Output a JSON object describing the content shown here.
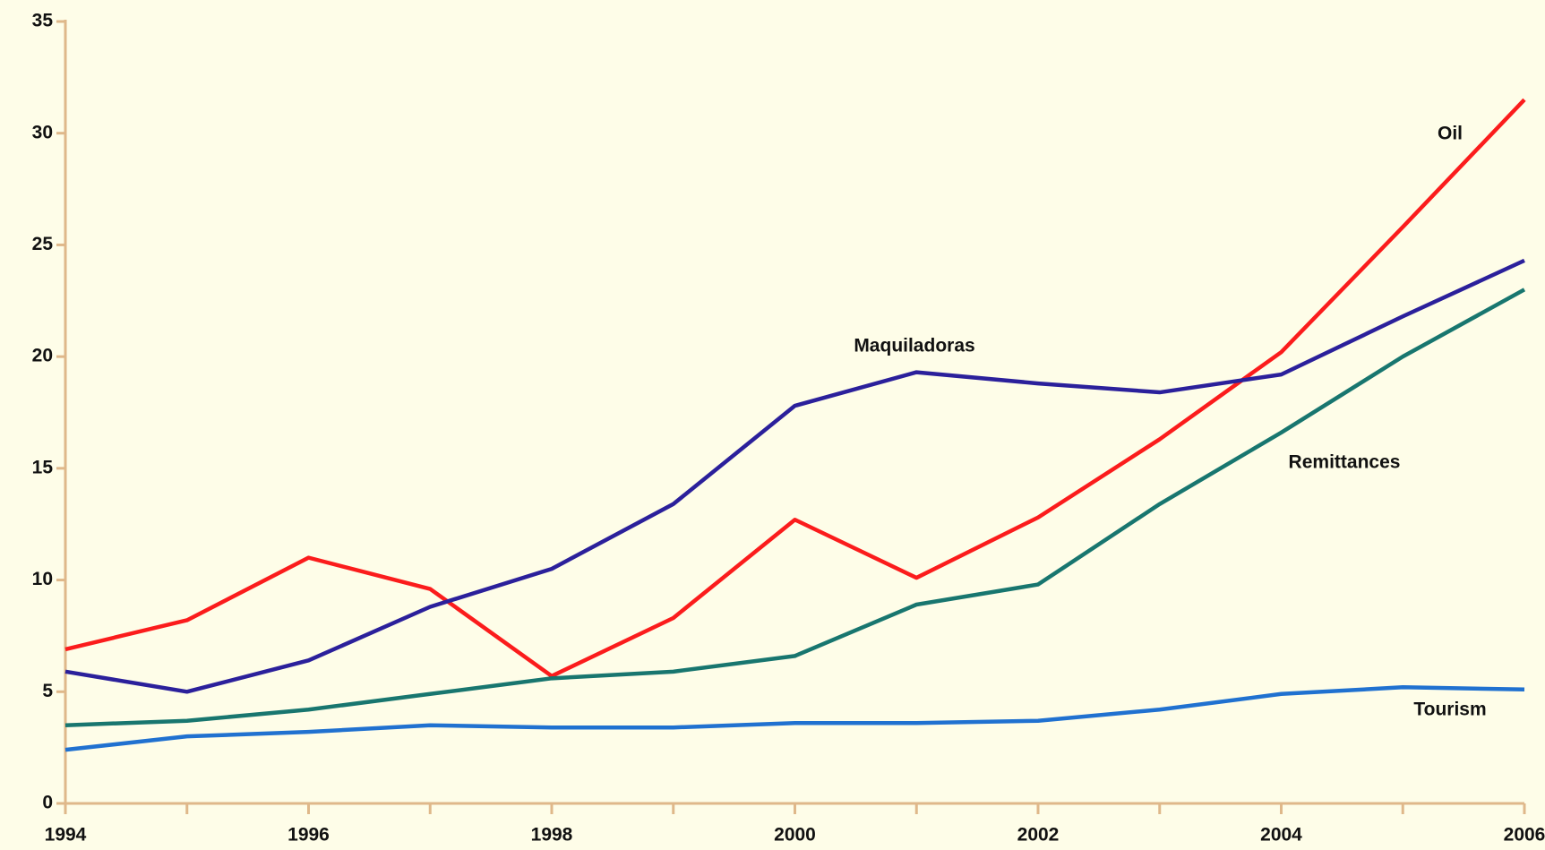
{
  "chart_data": {
    "type": "line",
    "x": [
      1994,
      1995,
      1996,
      1997,
      1998,
      1999,
      2000,
      2001,
      2002,
      2003,
      2004,
      2005,
      2006
    ],
    "series": [
      {
        "name": "Oil",
        "color": "#fb1c1c",
        "values": [
          6.9,
          8.2,
          11.0,
          9.6,
          5.7,
          8.3,
          12.7,
          10.1,
          12.8,
          16.3,
          20.2,
          25.8,
          31.5
        ]
      },
      {
        "name": "Maquiladoras",
        "color": "#2b209b",
        "values": [
          5.9,
          5.0,
          6.4,
          8.8,
          10.5,
          13.4,
          17.8,
          19.3,
          18.8,
          18.4,
          19.2,
          21.8,
          24.3
        ]
      },
      {
        "name": "Remittances",
        "color": "#18766f",
        "values": [
          3.5,
          3.7,
          4.2,
          4.9,
          5.6,
          5.9,
          6.6,
          8.9,
          9.8,
          13.4,
          16.6,
          20.0,
          23.0
        ]
      },
      {
        "name": "Tourism",
        "color": "#2071d0",
        "values": [
          2.4,
          3.0,
          3.2,
          3.5,
          3.4,
          3.4,
          3.6,
          3.6,
          3.7,
          4.2,
          4.9,
          5.2,
          5.1
        ]
      }
    ],
    "xlim": [
      1994,
      2006
    ],
    "xticks": [
      1994,
      1996,
      1998,
      2000,
      2002,
      2004,
      2006
    ],
    "xminor_ticks": [
      1995,
      1997,
      1999,
      2001,
      2003,
      2005
    ],
    "ylim": [
      0,
      35
    ],
    "yticks": [
      0,
      5,
      10,
      15,
      20,
      25,
      30,
      35
    ]
  }
}
